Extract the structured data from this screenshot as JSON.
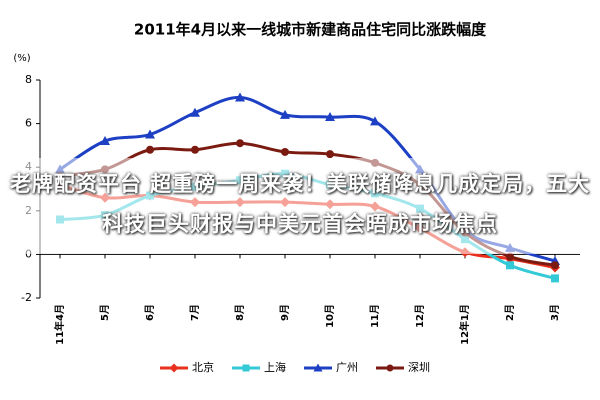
{
  "chart_data": {
    "type": "line",
    "title": "2011年4月以来一线城市新建商品住宅同比涨跌幅度",
    "y_label": "(%)",
    "categories": [
      "11年4月",
      "5月",
      "6月",
      "7月",
      "8月",
      "9月",
      "10月",
      "11月",
      "12月",
      "12年1月",
      "2月",
      "3月"
    ],
    "series": [
      {
        "name": "北京",
        "color": "#e8301c",
        "marker": "diamond",
        "values": [
          3.2,
          2.6,
          2.7,
          2.4,
          2.4,
          2.4,
          2.3,
          2.2,
          1.2,
          0.1,
          -0.2,
          -0.6
        ]
      },
      {
        "name": "上海",
        "color": "#33c9d6",
        "marker": "square",
        "values": [
          1.6,
          1.8,
          2.7,
          3.1,
          3.4,
          3.7,
          3.2,
          2.8,
          2.1,
          0.7,
          -0.5,
          -1.1
        ]
      },
      {
        "name": "广州",
        "color": "#1c3fc4",
        "marker": "triangle",
        "values": [
          3.9,
          5.2,
          5.5,
          6.5,
          7.2,
          6.4,
          6.3,
          6.1,
          3.9,
          1.1,
          0.3,
          -0.3
        ]
      },
      {
        "name": "深圳",
        "color": "#7a1a10",
        "marker": "circle",
        "values": [
          3.6,
          3.9,
          4.8,
          4.8,
          5.1,
          4.7,
          4.6,
          4.2,
          3.2,
          1.0,
          -0.1,
          -0.5
        ]
      }
    ],
    "ylim": [
      -2,
      8
    ],
    "yticks": [
      -2,
      0,
      2,
      4,
      6,
      8
    ],
    "overlay": "老牌配资平台 超重磅一周来袭！美联储降息几成定局，五大科技巨头财报与中美元首会晤成市场焦点"
  }
}
